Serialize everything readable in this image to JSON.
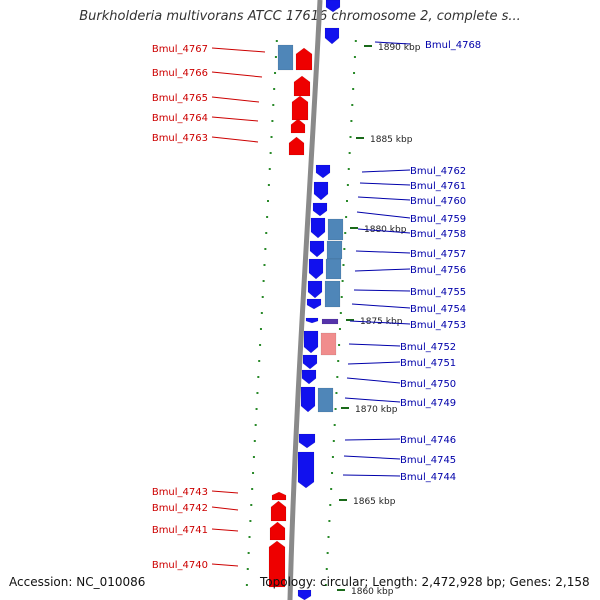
{
  "title": "Burkholderia multivorans ATCC 17616 chromosome 2, complete s...",
  "footer": {
    "accession": "Accession: NC_010086",
    "summary": "Topology: circular; Length: 2,472,928 bp; Genes: 2,158"
  },
  "colors": {
    "forward_cds": "#ee0000",
    "reverse_cds": "#1111ee",
    "feature_steel": "#4f86b8",
    "feature_pink": "#f08d8d",
    "feature_purple": "#5533aa",
    "backbone": "#8a8a8a",
    "dot_marker": "#2a8a2a",
    "dash_marker": "#1a6a1a"
  },
  "ticks": [
    "1890 kbp",
    "1885 kbp",
    "1880 kbp",
    "1875 kbp",
    "1870 kbp",
    "1865 kbp",
    "1860 kbp"
  ],
  "left_genes": [
    "Bmul_4767",
    "Bmul_4766",
    "Bmul_4765",
    "Bmul_4764",
    "Bmul_4763",
    "Bmul_4743",
    "Bmul_4742",
    "Bmul_4741",
    "Bmul_4740"
  ],
  "right_genes": [
    "Bmul_4768",
    "Bmul_4762",
    "Bmul_4761",
    "Bmul_4760",
    "Bmul_4759",
    "Bmul_4758",
    "Bmul_4757",
    "Bmul_4756",
    "Bmul_4755",
    "Bmul_4754",
    "Bmul_4753",
    "Bmul_4752",
    "Bmul_4751",
    "Bmul_4750",
    "Bmul_4749",
    "Bmul_4746",
    "Bmul_4745",
    "Bmul_4744"
  ]
}
